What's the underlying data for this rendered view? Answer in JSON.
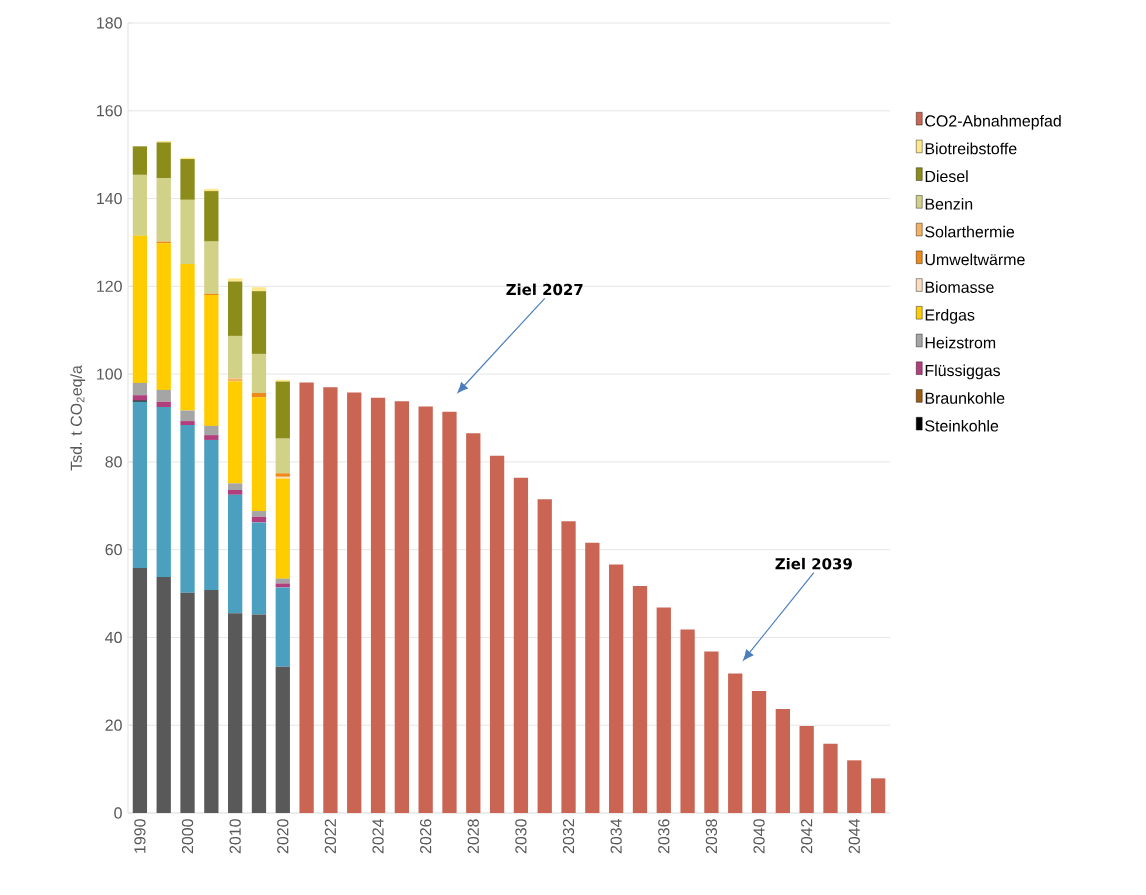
{
  "chart_data": {
    "type": "bar",
    "stacked": true,
    "ylabel": "Tsd. t CO$_{2}$eq/a",
    "categories": [
      "1990",
      null,
      "2000",
      null,
      "2010",
      null,
      "2020",
      null,
      "2022",
      null,
      "2024",
      null,
      "2026",
      null,
      "2028",
      null,
      "2030",
      null,
      "2032",
      null,
      "2034",
      null,
      "2036",
      null,
      "2038",
      null,
      "2040",
      null,
      "2042",
      null,
      "2044",
      null
    ],
    "ylim": [
      0,
      180
    ],
    "yticks": [
      0,
      20,
      40,
      60,
      80,
      100,
      120,
      140,
      160,
      180
    ],
    "grid": "y",
    "legend": "right",
    "series": [
      {
        "color": "#595959",
        "values": [
          55.8,
          53.8,
          50.2,
          50.8,
          45.5,
          45.2,
          33.3,
          null,
          null,
          null,
          null,
          null,
          null,
          null,
          null,
          null,
          null,
          null,
          null,
          null,
          null,
          null,
          null,
          null,
          null,
          null,
          null,
          null,
          null,
          null,
          null,
          null
        ]
      },
      {
        "color": "#4ba0c0",
        "values": [
          37.9,
          38.7,
          38.2,
          34.2,
          27.0,
          21.0,
          18.1,
          null,
          null,
          null,
          null,
          null,
          null,
          null,
          null,
          null,
          null,
          null,
          null,
          null,
          null,
          null,
          null,
          null,
          null,
          null,
          null,
          null,
          null,
          null,
          null,
          null
        ]
      },
      {
        "name": "Steinkohle",
        "color": "#000000",
        "values": [
          0.3,
          0,
          0,
          0,
          0,
          0,
          0,
          null,
          null,
          null,
          null,
          null,
          null,
          null,
          null,
          null,
          null,
          null,
          null,
          null,
          null,
          null,
          null,
          null,
          null,
          null,
          null,
          null,
          null,
          null,
          null,
          null
        ]
      },
      {
        "name": "Braunkohle",
        "color": "#9c5b0f",
        "values": [
          0,
          0,
          0,
          0,
          0,
          0,
          0,
          null,
          null,
          null,
          null,
          null,
          null,
          null,
          null,
          null,
          null,
          null,
          null,
          null,
          null,
          null,
          null,
          null,
          null,
          null,
          null,
          null,
          null,
          null,
          null,
          null
        ]
      },
      {
        "name": "Flüssiggas",
        "color": "#b13f7e",
        "values": [
          1.2,
          1.2,
          0.9,
          1.1,
          1.1,
          1.3,
          0.9,
          null,
          null,
          null,
          null,
          null,
          null,
          null,
          null,
          null,
          null,
          null,
          null,
          null,
          null,
          null,
          null,
          null,
          null,
          null,
          null,
          null,
          null,
          null,
          null,
          null
        ]
      },
      {
        "name": "Heizstrom",
        "color": "#a5a5a5",
        "values": [
          2.8,
          2.7,
          2.4,
          2.1,
          1.5,
          1.3,
          1.1,
          null,
          null,
          null,
          null,
          null,
          null,
          null,
          null,
          null,
          null,
          null,
          null,
          null,
          null,
          null,
          null,
          null,
          null,
          null,
          null,
          null,
          null,
          null,
          null,
          null
        ]
      },
      {
        "name": "Erdgas",
        "color": "#ffcc00",
        "values": [
          33.5,
          33.4,
          33.4,
          29.8,
          23.3,
          25.9,
          22.8,
          null,
          null,
          null,
          null,
          null,
          null,
          null,
          null,
          null,
          null,
          null,
          null,
          null,
          null,
          null,
          null,
          null,
          null,
          null,
          null,
          null,
          null,
          null,
          null,
          null
        ]
      },
      {
        "name": "Biomasse",
        "color": "#fbddc0",
        "values": [
          0,
          0,
          0,
          0,
          0,
          0,
          0.4,
          null,
          null,
          null,
          null,
          null,
          null,
          null,
          null,
          null,
          null,
          null,
          null,
          null,
          null,
          null,
          null,
          null,
          null,
          null,
          null,
          null,
          null,
          null,
          null,
          null
        ]
      },
      {
        "name": "Umweltwärme",
        "color": "#ee8a1a",
        "values": [
          0,
          0.4,
          0,
          0.3,
          0,
          1.0,
          0.8,
          null,
          null,
          null,
          null,
          null,
          null,
          null,
          null,
          null,
          null,
          null,
          null,
          null,
          null,
          null,
          null,
          null,
          null,
          null,
          null,
          null,
          null,
          null,
          null,
          null
        ]
      },
      {
        "name": "Solarthermie",
        "color": "#f4b063",
        "values": [
          0,
          0,
          0,
          0,
          0.6,
          0,
          0,
          null,
          null,
          null,
          null,
          null,
          null,
          null,
          null,
          null,
          null,
          null,
          null,
          null,
          null,
          null,
          null,
          null,
          null,
          null,
          null,
          null,
          null,
          null,
          null,
          null
        ]
      },
      {
        "name": "Benzin",
        "color": "#d1d188",
        "values": [
          13.9,
          14.4,
          14.6,
          11.9,
          9.7,
          8.9,
          7.9,
          null,
          null,
          null,
          null,
          null,
          null,
          null,
          null,
          null,
          null,
          null,
          null,
          null,
          null,
          null,
          null,
          null,
          null,
          null,
          null,
          null,
          null,
          null,
          null,
          null
        ]
      },
      {
        "name": "Diesel",
        "color": "#8c8c1a",
        "values": [
          6.5,
          8.2,
          9.3,
          11.5,
          12.4,
          14.3,
          13.0,
          null,
          null,
          null,
          null,
          null,
          null,
          null,
          null,
          null,
          null,
          null,
          null,
          null,
          null,
          null,
          null,
          null,
          null,
          null,
          null,
          null,
          null,
          null,
          null,
          null
        ]
      },
      {
        "name": "Biotreibstoffe",
        "color": "#ffe88a",
        "values": [
          0,
          0.3,
          0.3,
          0.5,
          0.7,
          0.9,
          0.4,
          null,
          null,
          null,
          null,
          null,
          null,
          null,
          null,
          null,
          null,
          null,
          null,
          null,
          null,
          null,
          null,
          null,
          null,
          null,
          null,
          null,
          null,
          null,
          null,
          null
        ]
      },
      {
        "name": "CO2-Abnahmepfad",
        "color": "#c96552",
        "values": [
          null,
          null,
          null,
          null,
          null,
          null,
          null,
          98.1,
          97.0,
          95.8,
          94.6,
          93.8,
          92.6,
          91.4,
          86.5,
          81.4,
          76.4,
          71.5,
          66.5,
          61.6,
          56.6,
          51.7,
          46.8,
          41.8,
          36.8,
          31.8,
          27.8,
          23.7,
          19.8,
          15.8,
          12.0,
          7.9
        ]
      }
    ],
    "annotations": [
      "Ziel 2027",
      "Ziel 2039"
    ]
  }
}
